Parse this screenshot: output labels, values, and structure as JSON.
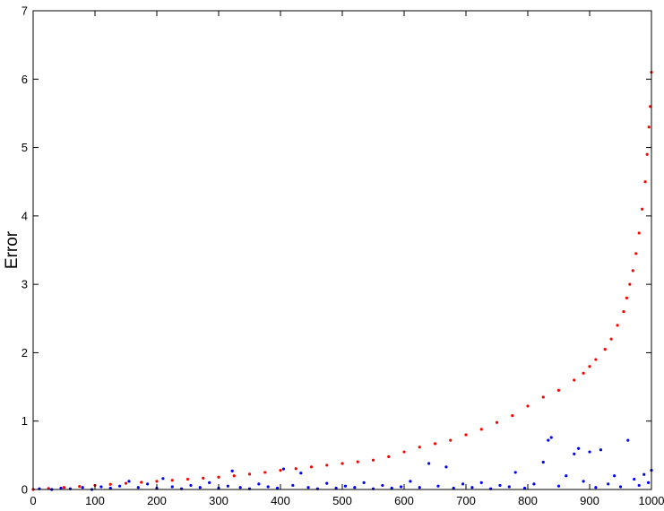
{
  "chart_data": {
    "type": "scatter",
    "title": "",
    "xlabel": "",
    "ylabel": "Error",
    "xlim": [
      0,
      1000
    ],
    "ylim": [
      0,
      7
    ],
    "xticks": [
      0,
      100,
      200,
      300,
      400,
      500,
      600,
      700,
      800,
      900,
      1000
    ],
    "yticks": [
      0,
      1,
      2,
      3,
      4,
      5,
      6,
      7
    ],
    "grid": false,
    "legend": "none",
    "series": [
      {
        "color": "#ff0000",
        "points": [
          [
            0,
            0.0
          ],
          [
            25,
            0.015
          ],
          [
            50,
            0.03
          ],
          [
            75,
            0.045
          ],
          [
            100,
            0.06
          ],
          [
            125,
            0.075
          ],
          [
            150,
            0.09
          ],
          [
            175,
            0.105
          ],
          [
            200,
            0.12
          ],
          [
            225,
            0.135
          ],
          [
            250,
            0.15
          ],
          [
            275,
            0.165
          ],
          [
            300,
            0.18
          ],
          [
            325,
            0.2
          ],
          [
            350,
            0.225
          ],
          [
            375,
            0.25
          ],
          [
            400,
            0.28
          ],
          [
            425,
            0.305
          ],
          [
            450,
            0.33
          ],
          [
            475,
            0.355
          ],
          [
            500,
            0.38
          ],
          [
            525,
            0.405
          ],
          [
            550,
            0.43
          ],
          [
            575,
            0.48
          ],
          [
            600,
            0.55
          ],
          [
            625,
            0.62
          ],
          [
            650,
            0.67
          ],
          [
            675,
            0.72
          ],
          [
            700,
            0.8
          ],
          [
            725,
            0.88
          ],
          [
            750,
            0.98
          ],
          [
            775,
            1.08
          ],
          [
            800,
            1.22
          ],
          [
            825,
            1.35
          ],
          [
            850,
            1.45
          ],
          [
            875,
            1.6
          ],
          [
            890,
            1.7
          ],
          [
            900,
            1.8
          ],
          [
            910,
            1.9
          ],
          [
            925,
            2.05
          ],
          [
            935,
            2.2
          ],
          [
            945,
            2.4
          ],
          [
            955,
            2.6
          ],
          [
            960,
            2.8
          ],
          [
            965,
            3.0
          ],
          [
            970,
            3.2
          ],
          [
            975,
            3.45
          ],
          [
            980,
            3.75
          ],
          [
            985,
            4.1
          ],
          [
            990,
            4.5
          ],
          [
            993,
            4.9
          ],
          [
            996,
            5.3
          ],
          [
            998,
            5.6
          ],
          [
            1000,
            6.1
          ]
        ]
      },
      {
        "color": "#0000ff",
        "points": [
          [
            10,
            0.01
          ],
          [
            30,
            0.0
          ],
          [
            45,
            0.02
          ],
          [
            60,
            0.01
          ],
          [
            80,
            0.03
          ],
          [
            95,
            0.0
          ],
          [
            110,
            0.04
          ],
          [
            125,
            0.02
          ],
          [
            140,
            0.05
          ],
          [
            155,
            0.12
          ],
          [
            170,
            0.03
          ],
          [
            185,
            0.08
          ],
          [
            200,
            0.02
          ],
          [
            210,
            0.16
          ],
          [
            225,
            0.04
          ],
          [
            240,
            0.01
          ],
          [
            255,
            0.06
          ],
          [
            270,
            0.03
          ],
          [
            285,
            0.1
          ],
          [
            300,
            0.02
          ],
          [
            315,
            0.05
          ],
          [
            322,
            0.27
          ],
          [
            335,
            0.03
          ],
          [
            350,
            0.01
          ],
          [
            365,
            0.08
          ],
          [
            380,
            0.04
          ],
          [
            395,
            0.02
          ],
          [
            405,
            0.3
          ],
          [
            420,
            0.06
          ],
          [
            433,
            0.24
          ],
          [
            445,
            0.03
          ],
          [
            460,
            0.01
          ],
          [
            475,
            0.09
          ],
          [
            490,
            0.02
          ],
          [
            505,
            0.05
          ],
          [
            520,
            0.03
          ],
          [
            535,
            0.1
          ],
          [
            550,
            0.01
          ],
          [
            565,
            0.06
          ],
          [
            580,
            0.02
          ],
          [
            595,
            0.04
          ],
          [
            610,
            0.12
          ],
          [
            625,
            0.03
          ],
          [
            640,
            0.38
          ],
          [
            655,
            0.05
          ],
          [
            668,
            0.33
          ],
          [
            680,
            0.02
          ],
          [
            695,
            0.08
          ],
          [
            710,
            0.03
          ],
          [
            725,
            0.1
          ],
          [
            740,
            0.01
          ],
          [
            755,
            0.06
          ],
          [
            770,
            0.04
          ],
          [
            780,
            0.25
          ],
          [
            795,
            0.02
          ],
          [
            810,
            0.08
          ],
          [
            825,
            0.4
          ],
          [
            833,
            0.72
          ],
          [
            838,
            0.76
          ],
          [
            850,
            0.05
          ],
          [
            862,
            0.2
          ],
          [
            875,
            0.52
          ],
          [
            882,
            0.6
          ],
          [
            890,
            0.12
          ],
          [
            900,
            0.55
          ],
          [
            910,
            0.03
          ],
          [
            918,
            0.58
          ],
          [
            930,
            0.08
          ],
          [
            940,
            0.2
          ],
          [
            950,
            0.04
          ],
          [
            962,
            0.72
          ],
          [
            972,
            0.15
          ],
          [
            980,
            0.06
          ],
          [
            988,
            0.22
          ],
          [
            995,
            0.1
          ],
          [
            1000,
            0.28
          ]
        ]
      }
    ]
  }
}
